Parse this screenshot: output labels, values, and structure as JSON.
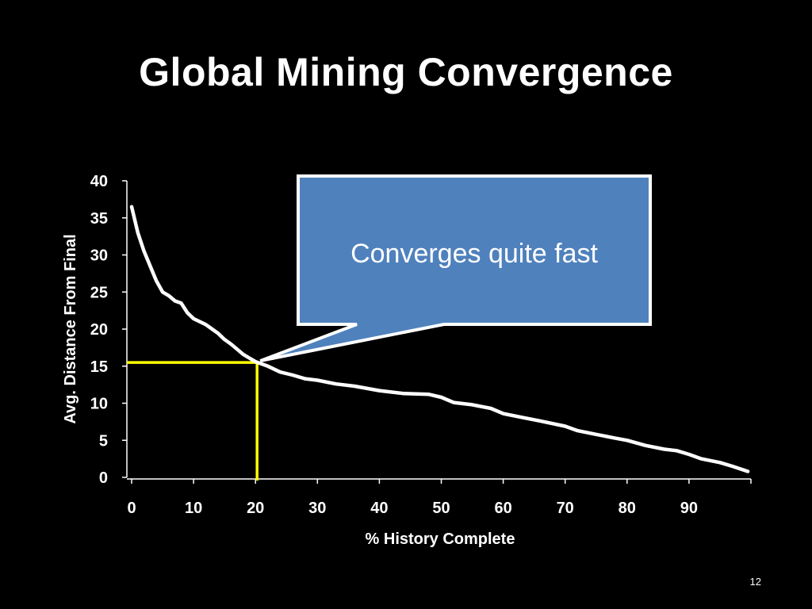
{
  "slide": {
    "title": "Global Mining Convergence",
    "page_number": "12"
  },
  "callout": {
    "text": "Converges quite fast"
  },
  "colors": {
    "background": "#000000",
    "text": "#ffffff",
    "line": "#ffffff",
    "highlight": "#ffff00",
    "callout_fill": "#4f81bd",
    "callout_border": "#ffffff"
  },
  "chart_data": {
    "type": "line",
    "xlabel": "% History Complete",
    "ylabel": "Avg. Distance From Final",
    "xlim": [
      0,
      100
    ],
    "ylim": [
      0,
      40
    ],
    "xticks": [
      0,
      10,
      20,
      30,
      40,
      50,
      60,
      70,
      80,
      90
    ],
    "yticks": [
      0,
      5,
      10,
      15,
      20,
      25,
      30,
      35,
      40
    ],
    "grid": false,
    "series": [
      {
        "x": [
          0,
          1,
          2,
          3,
          4,
          5,
          6,
          7,
          8,
          9,
          10,
          11,
          12,
          13,
          14,
          15,
          16,
          17,
          18,
          19,
          20,
          22,
          24,
          26,
          28,
          30,
          33,
          36,
          40,
          44,
          48,
          50,
          52,
          55,
          58,
          60,
          63,
          66,
          70,
          72,
          75,
          78,
          80,
          83,
          86,
          88,
          90,
          92,
          95,
          97,
          99.5
        ],
        "y": [
          36.5,
          33,
          30.5,
          28.5,
          26.5,
          25,
          24.5,
          23.8,
          23.5,
          22.2,
          21.4,
          21,
          20.6,
          20,
          19.4,
          18.6,
          18,
          17.3,
          16.6,
          16.1,
          15.6,
          15,
          14.2,
          13.8,
          13.3,
          13.1,
          12.6,
          12.3,
          11.7,
          11.3,
          11.2,
          10.8,
          10.1,
          9.8,
          9.3,
          8.6,
          8.1,
          7.6,
          6.9,
          6.3,
          5.8,
          5.3,
          5,
          4.3,
          3.8,
          3.6,
          3.1,
          2.5,
          2,
          1.5,
          0.8
        ]
      }
    ],
    "highlight_point": {
      "x": 20,
      "y": 15.5
    }
  }
}
